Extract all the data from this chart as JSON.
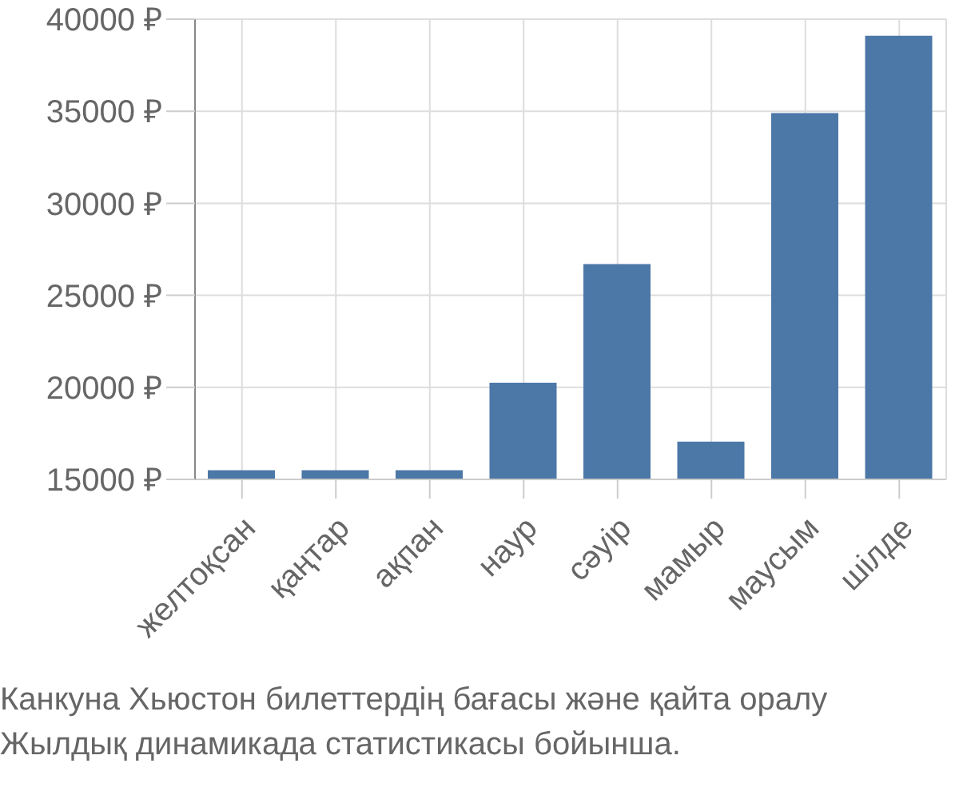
{
  "chart_data": {
    "type": "bar",
    "categories": [
      "желтоқсан",
      "қаңтар",
      "ақпан",
      "наур",
      "сәуір",
      "мамыр",
      "маусым",
      "шілде"
    ],
    "values": [
      15500,
      15500,
      15500,
      20250,
      26700,
      17050,
      34900,
      39100
    ],
    "color": "#4c78a8",
    "ylim": [
      15000,
      40000
    ],
    "yticks": [
      {
        "value": 15000,
        "label": "15000 ₽"
      },
      {
        "value": 20000,
        "label": "20000 ₽"
      },
      {
        "value": 25000,
        "label": "25000 ₽"
      },
      {
        "value": 30000,
        "label": "30000 ₽"
      },
      {
        "value": 35000,
        "label": "35000 ₽"
      },
      {
        "value": 40000,
        "label": "40000 ₽"
      }
    ],
    "grid": true,
    "annotations": [
      "Канкуна Хьюстон билеттердің бағасы және қайта оралу",
      "Жылдық динамикада статистикасы бойынша."
    ]
  }
}
